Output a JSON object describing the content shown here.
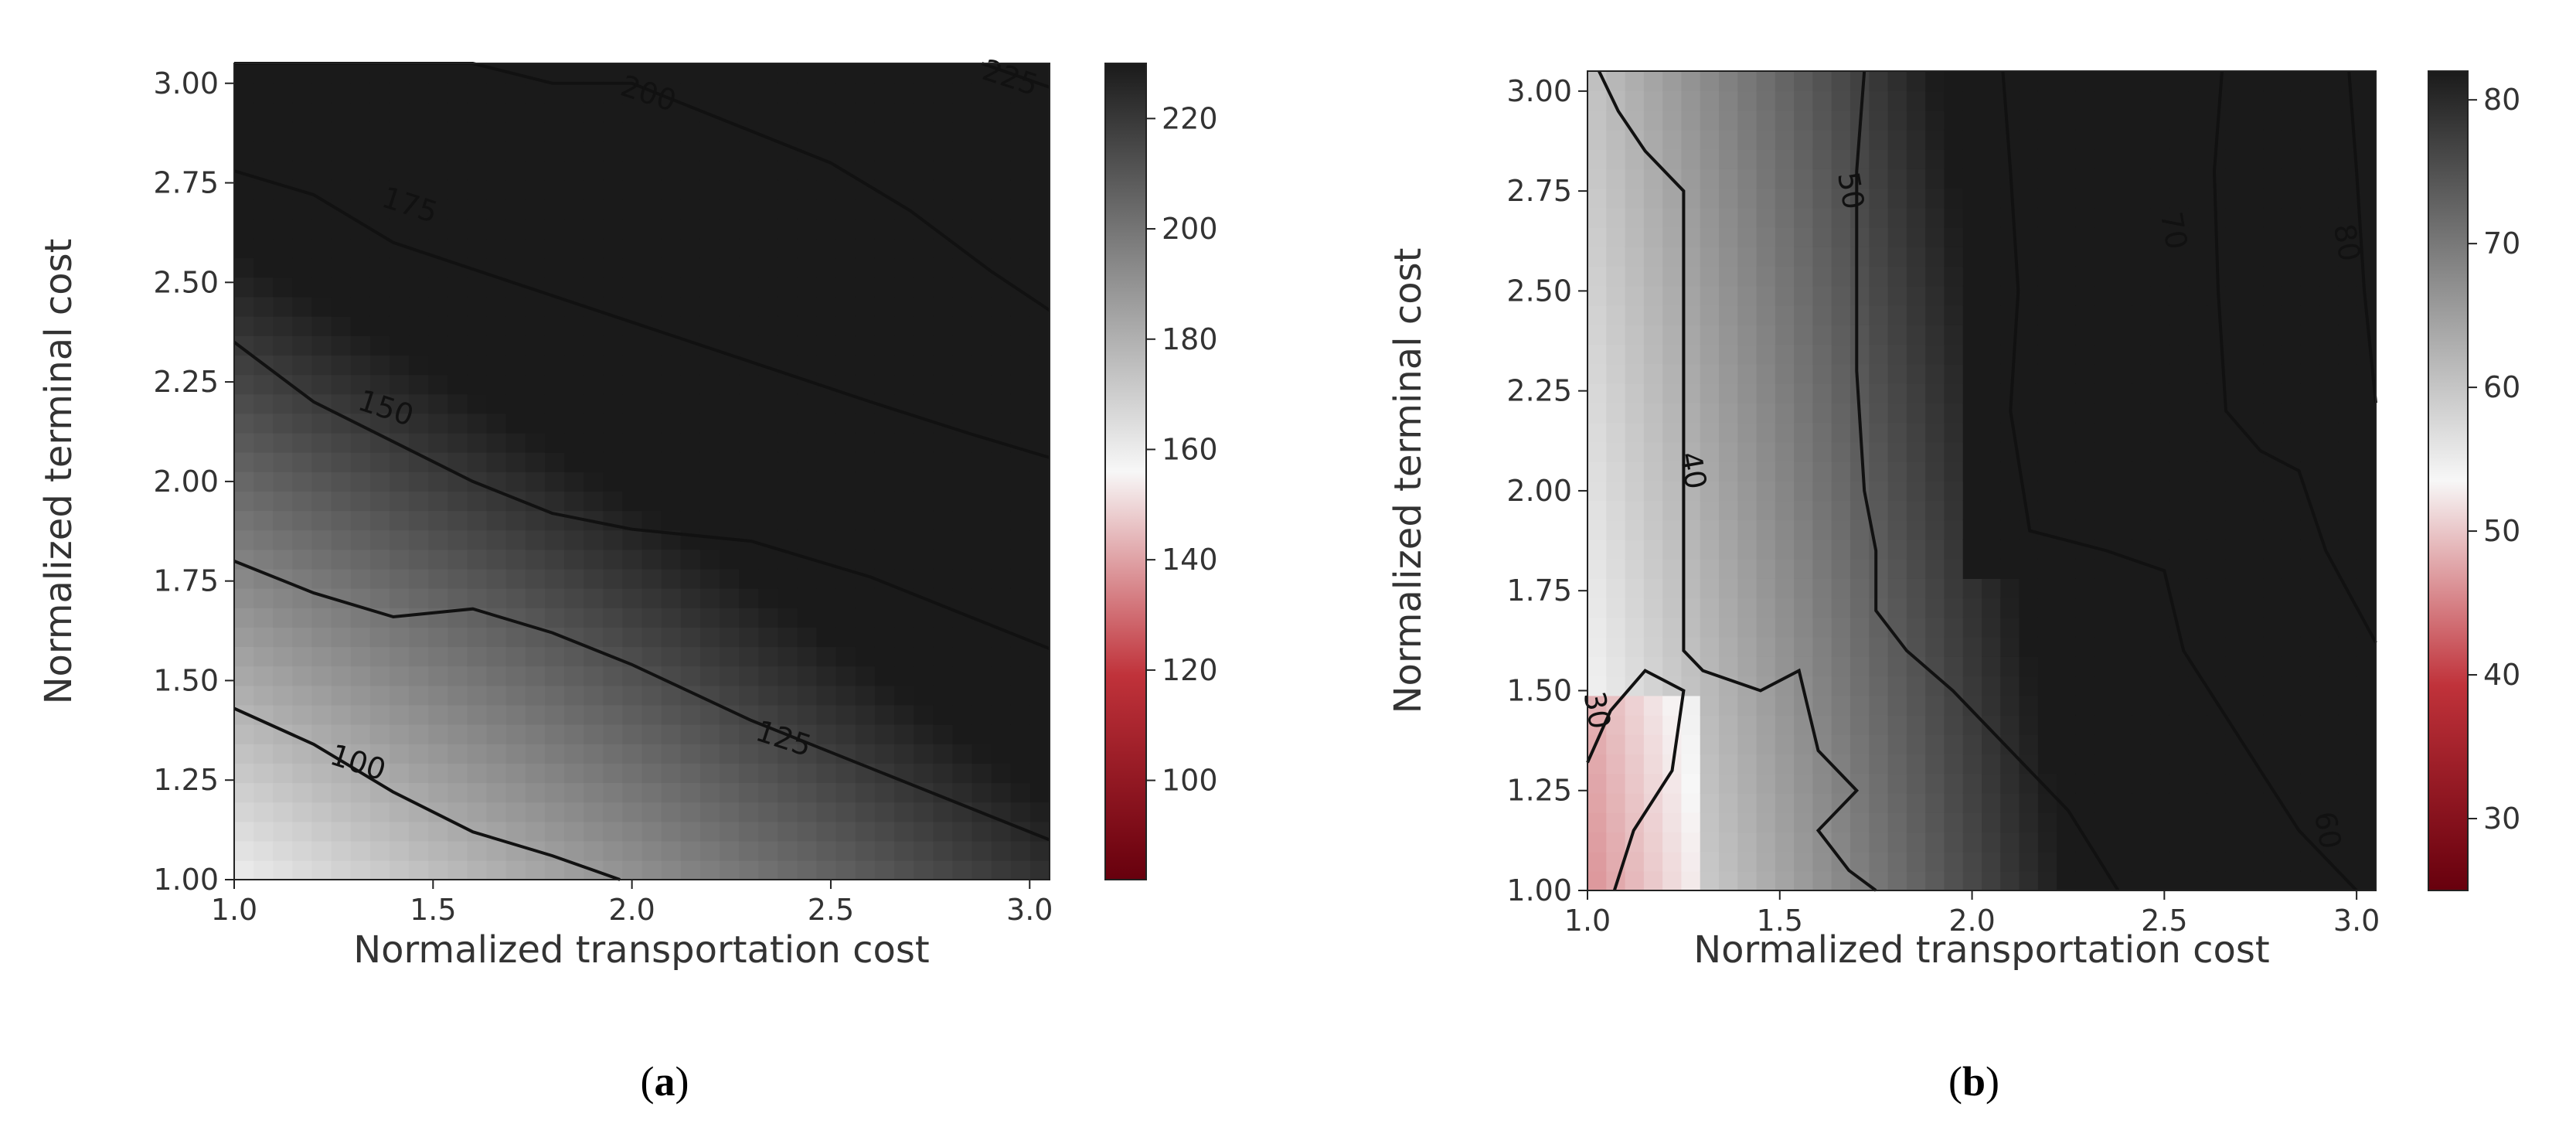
{
  "figure": {
    "label_a": "a",
    "label_b": "b"
  },
  "chart_data": [
    {
      "type": "heatmap",
      "panel": "a",
      "xlabel": "Normalized transportation cost",
      "ylabel": "Normalized terminal cost",
      "xlim": [
        1.0,
        3.05
      ],
      "ylim": [
        1.0,
        3.05
      ],
      "x_ticks": [
        "1.0",
        "1.5",
        "2.0",
        "2.5",
        "3.0"
      ],
      "y_ticks": [
        "1.00",
        "1.25",
        "1.50",
        "1.75",
        "2.00",
        "2.25",
        "2.50",
        "2.75",
        "3.00"
      ],
      "colorbar": {
        "range": [
          82,
          230
        ],
        "ticks": [
          "100",
          "120",
          "140",
          "160",
          "180",
          "200",
          "220"
        ],
        "low_color": "#67000d",
        "mid_color": "#f7f7f7",
        "high_color": "#1a1a1a"
      },
      "contours": [
        {
          "level": 100,
          "label": "100",
          "points": [
            [
              1.0,
              1.43
            ],
            [
              1.2,
              1.34
            ],
            [
              1.4,
              1.22
            ],
            [
              1.6,
              1.12
            ],
            [
              1.8,
              1.06
            ],
            [
              1.97,
              1.0
            ]
          ]
        },
        {
          "level": 125,
          "label": "125",
          "points": [
            [
              1.0,
              1.8
            ],
            [
              1.2,
              1.72
            ],
            [
              1.4,
              1.66
            ],
            [
              1.6,
              1.68
            ],
            [
              1.8,
              1.62
            ],
            [
              2.0,
              1.54
            ],
            [
              2.3,
              1.4
            ],
            [
              2.6,
              1.28
            ],
            [
              2.8,
              1.2
            ],
            [
              3.05,
              1.1
            ]
          ]
        },
        {
          "level": 150,
          "label": "150",
          "points": [
            [
              1.0,
              2.35
            ],
            [
              1.2,
              2.2
            ],
            [
              1.4,
              2.1
            ],
            [
              1.6,
              2.0
            ],
            [
              1.8,
              1.92
            ],
            [
              2.0,
              1.88
            ],
            [
              2.3,
              1.85
            ],
            [
              2.6,
              1.76
            ],
            [
              2.85,
              1.66
            ],
            [
              3.05,
              1.58
            ]
          ]
        },
        {
          "level": 175,
          "label": "175",
          "points": [
            [
              1.0,
              2.78
            ],
            [
              1.2,
              2.72
            ],
            [
              1.4,
              2.6
            ],
            [
              1.7,
              2.5
            ],
            [
              2.0,
              2.4
            ],
            [
              2.3,
              2.3
            ],
            [
              2.6,
              2.2
            ],
            [
              2.85,
              2.12
            ],
            [
              3.05,
              2.06
            ]
          ]
        },
        {
          "level": 200,
          "label": "200",
          "points": [
            [
              1.0,
              3.05
            ],
            [
              1.6,
              3.05
            ],
            [
              1.8,
              3.0
            ],
            [
              2.0,
              3.0
            ],
            [
              2.2,
              2.92
            ],
            [
              2.5,
              2.8
            ],
            [
              2.7,
              2.68
            ],
            [
              2.9,
              2.53
            ],
            [
              3.05,
              2.43
            ]
          ]
        },
        {
          "level": 225,
          "label": "225",
          "points": [
            [
              2.88,
              3.05
            ],
            [
              3.05,
              2.99
            ]
          ]
        }
      ],
      "contour_labels": [
        {
          "text": "100",
          "x": 1.31,
          "y": 1.29
        },
        {
          "text": "125",
          "x": 2.38,
          "y": 1.35
        },
        {
          "text": "150",
          "x": 1.38,
          "y": 2.18
        },
        {
          "text": "175",
          "x": 1.44,
          "y": 2.69
        },
        {
          "text": "200",
          "x": 2.04,
          "y": 2.97
        },
        {
          "text": "225",
          "x": 2.95,
          "y": 3.01
        }
      ]
    },
    {
      "type": "heatmap",
      "panel": "b",
      "xlabel": "Normalized transportation cost",
      "ylabel": "Normalized terminal cost",
      "xlim": [
        1.0,
        3.05
      ],
      "ylim": [
        1.0,
        3.05
      ],
      "x_ticks": [
        "1.0",
        "1.5",
        "2.0",
        "2.5",
        "3.0"
      ],
      "y_ticks": [
        "1.00",
        "1.25",
        "1.50",
        "1.75",
        "2.00",
        "2.25",
        "2.50",
        "2.75",
        "3.00"
      ],
      "colorbar": {
        "range": [
          25,
          82
        ],
        "ticks": [
          "30",
          "40",
          "50",
          "60",
          "70",
          "80"
        ],
        "low_color": "#67000d",
        "mid_color": "#f7f7f7",
        "high_color": "#1a1a1a"
      },
      "contours": [
        {
          "level": 30,
          "label": "30",
          "points": [
            [
              1.0,
              1.32
            ],
            [
              1.06,
              1.45
            ],
            [
              1.15,
              1.55
            ],
            [
              1.25,
              1.5
            ],
            [
              1.22,
              1.3
            ],
            [
              1.12,
              1.15
            ],
            [
              1.07,
              1.0
            ]
          ]
        },
        {
          "level": 40,
          "label": "40",
          "points": [
            [
              1.03,
              3.05
            ],
            [
              1.08,
              2.95
            ],
            [
              1.15,
              2.85
            ],
            [
              1.2,
              2.8
            ],
            [
              1.25,
              2.75
            ],
            [
              1.25,
              2.2
            ],
            [
              1.25,
              1.9
            ],
            [
              1.25,
              1.6
            ],
            [
              1.3,
              1.55
            ],
            [
              1.45,
              1.5
            ],
            [
              1.55,
              1.55
            ],
            [
              1.6,
              1.35
            ],
            [
              1.7,
              1.25
            ],
            [
              1.6,
              1.15
            ],
            [
              1.68,
              1.05
            ],
            [
              1.75,
              1.0
            ]
          ]
        },
        {
          "level": 50,
          "label": "50",
          "points": [
            [
              1.72,
              3.05
            ],
            [
              1.7,
              2.8
            ],
            [
              1.7,
              2.5
            ],
            [
              1.7,
              2.3
            ],
            [
              1.72,
              2.0
            ],
            [
              1.75,
              1.85
            ],
            [
              1.75,
              1.7
            ],
            [
              1.83,
              1.6
            ],
            [
              1.95,
              1.5
            ],
            [
              2.1,
              1.35
            ],
            [
              2.25,
              1.2
            ],
            [
              2.38,
              1.0
            ]
          ]
        },
        {
          "level": 60,
          "label": "60",
          "points": [
            [
              2.08,
              3.05
            ],
            [
              2.1,
              2.8
            ],
            [
              2.12,
              2.5
            ],
            [
              2.1,
              2.2
            ],
            [
              2.15,
              1.9
            ],
            [
              2.35,
              1.85
            ],
            [
              2.5,
              1.8
            ],
            [
              2.55,
              1.6
            ],
            [
              2.65,
              1.45
            ],
            [
              2.75,
              1.3
            ],
            [
              2.85,
              1.15
            ],
            [
              3.0,
              1.0
            ]
          ]
        },
        {
          "level": 70,
          "label": "70",
          "points": [
            [
              2.65,
              3.05
            ],
            [
              2.63,
              2.8
            ],
            [
              2.64,
              2.5
            ],
            [
              2.66,
              2.2
            ],
            [
              2.75,
              2.1
            ],
            [
              2.85,
              2.05
            ],
            [
              2.92,
              1.85
            ],
            [
              3.05,
              1.62
            ]
          ]
        },
        {
          "level": 80,
          "label": "80",
          "points": [
            [
              3.05,
              2.22
            ],
            [
              3.02,
              2.5
            ],
            [
              3.0,
              2.8
            ],
            [
              2.98,
              3.05
            ]
          ]
        }
      ],
      "contour_labels": [
        {
          "text": "30",
          "x": 1.02,
          "y": 1.45
        },
        {
          "text": "40",
          "x": 1.27,
          "y": 2.05
        },
        {
          "text": "50",
          "x": 1.68,
          "y": 2.75
        },
        {
          "text": "60",
          "x": 2.92,
          "y": 1.15
        },
        {
          "text": "70",
          "x": 2.52,
          "y": 2.65
        },
        {
          "text": "80",
          "x": 2.97,
          "y": 2.62
        }
      ]
    }
  ]
}
